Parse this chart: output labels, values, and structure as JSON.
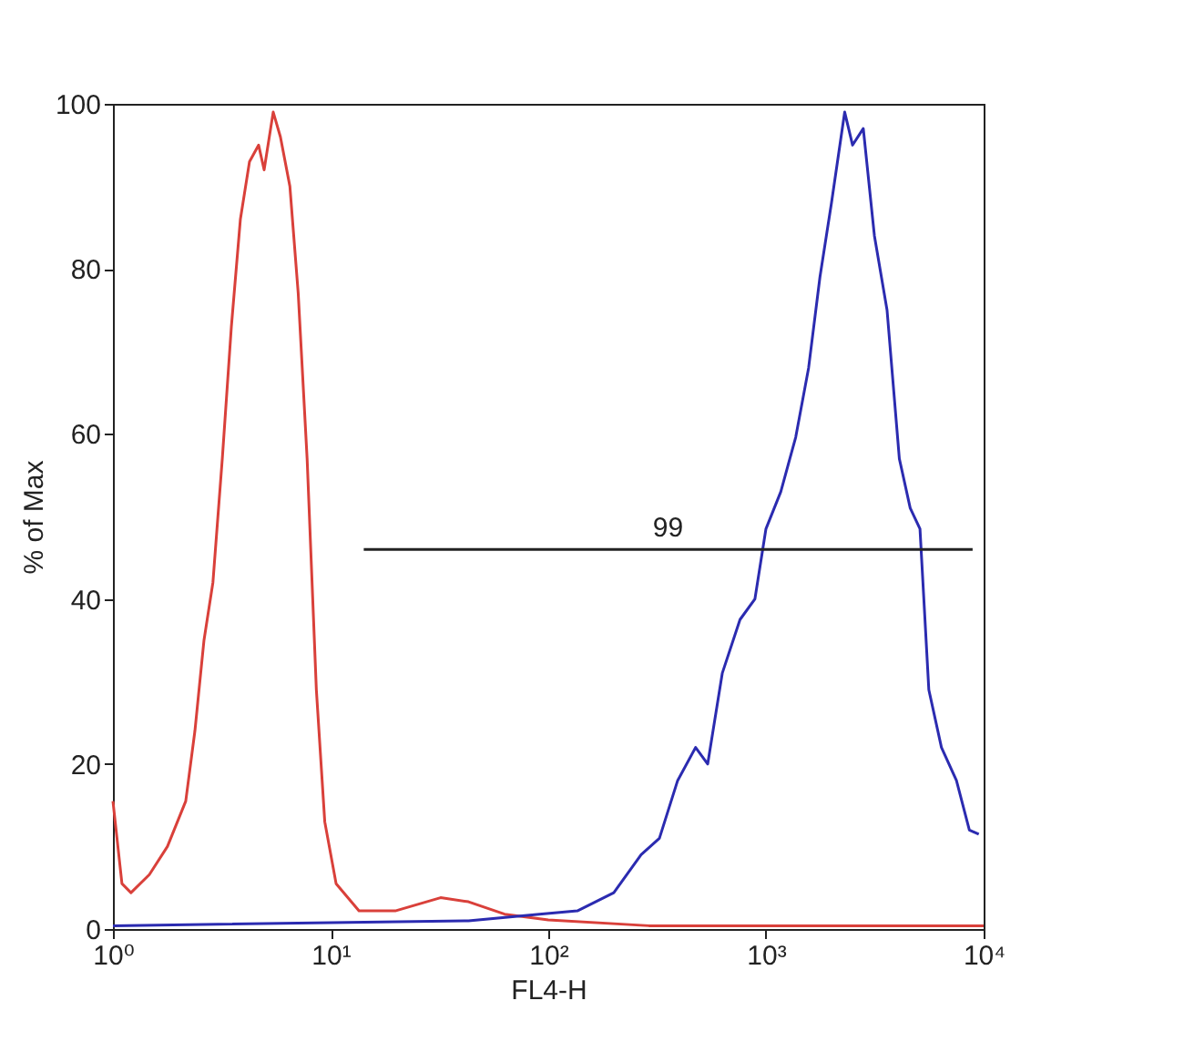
{
  "chart_data": {
    "type": "line",
    "xlabel": "FL4-H",
    "ylabel": "% of Max",
    "log": "x",
    "xlim": [
      1,
      10000
    ],
    "ylim": [
      0,
      100
    ],
    "xticks": [
      {
        "value": 1,
        "label": "10⁰"
      },
      {
        "value": 10,
        "label": "10¹"
      },
      {
        "value": 100,
        "label": "10²"
      },
      {
        "value": 1000,
        "label": "10³"
      },
      {
        "value": 10000,
        "label": "10⁴"
      }
    ],
    "yticks": [
      0,
      20,
      40,
      60,
      80,
      100
    ],
    "grid": false,
    "marker": "none",
    "line_style": "solid",
    "series": [
      {
        "color": "#d9403a",
        "x": [
          1,
          1.1,
          1.21,
          1.47,
          1.78,
          2.16,
          2.38,
          2.62,
          2.88,
          3.18,
          3.5,
          3.85,
          4.24,
          4.67,
          4.95,
          5.45,
          5.88,
          6.5,
          7.1,
          7.8,
          8.6,
          9.4,
          10.6,
          13.5,
          19.8,
          32,
          43,
          63,
          100,
          290,
          10000
        ],
        "values": [
          15.5,
          5.5,
          4.4,
          6.6,
          10,
          15.5,
          24,
          35,
          42,
          57,
          73,
          86,
          93,
          95,
          92,
          99,
          96,
          90,
          77,
          57,
          29,
          13,
          5.5,
          2.2,
          2.2,
          3.8,
          3.3,
          1.8,
          1.1,
          0.4,
          0.4
        ]
      },
      {
        "color": "#2b2bb0",
        "x": [
          1,
          43,
          91,
          136,
          200,
          267,
          324,
          393,
          475,
          540,
          630,
          760,
          890,
          1000,
          1170,
          1370,
          1570,
          1770,
          2000,
          2300,
          2500,
          2800,
          3150,
          3600,
          4100,
          4600,
          5100,
          5600,
          6400,
          7500,
          8600,
          9500
        ],
        "values": [
          0.4,
          1,
          1.8,
          2.2,
          4.4,
          9,
          11,
          18,
          22,
          20,
          31,
          37.5,
          40,
          48.5,
          53,
          59.6,
          68,
          79,
          88,
          99,
          95,
          97,
          84,
          75,
          57,
          51,
          48.5,
          29,
          22,
          18,
          12,
          11.5
        ]
      },
      {
        "color": "#222222",
        "x": [
          14.2,
          8900
        ],
        "values": [
          46,
          46
        ]
      }
    ],
    "annotations": [
      {
        "text": "99",
        "x": 355,
        "y": 46
      }
    ]
  }
}
